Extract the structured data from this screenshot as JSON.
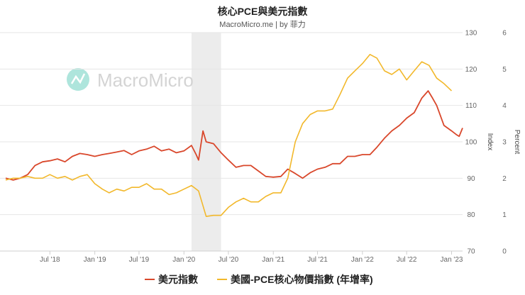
{
  "chart_data": {
    "type": "line",
    "title": "核心PCE與美元指數",
    "subtitle": "MacroMicro.me | by 菲力",
    "watermark": "MacroMicro",
    "x_ticks": [
      "Jul '18",
      "Jan '19",
      "Jul '19",
      "Jan '20",
      "Jul '20",
      "Jan '21",
      "Jul '21",
      "Jan '22",
      "Jul '22",
      "Jan '23"
    ],
    "x_range": [
      "2018-01-01",
      "2023-02-15"
    ],
    "shaded_period": [
      "2020-02-01",
      "2020-06-01"
    ],
    "y_left": {
      "label": "Index",
      "ticks": [
        70,
        80,
        90,
        100,
        110,
        120,
        130
      ],
      "range": [
        70,
        130
      ]
    },
    "y_right": {
      "label": "Percent",
      "ticks": [
        0,
        1,
        2,
        3,
        4,
        5,
        6
      ],
      "range": [
        0,
        6
      ]
    },
    "grid": true,
    "legend_position": "bottom",
    "series": [
      {
        "name": "美元指數",
        "axis": "left",
        "color": "#d9472b",
        "points": [
          [
            "2018-01-01",
            90.0
          ],
          [
            "2018-02-01",
            89.5
          ],
          [
            "2018-03-01",
            90.0
          ],
          [
            "2018-04-01",
            91.0
          ],
          [
            "2018-05-01",
            93.5
          ],
          [
            "2018-06-01",
            94.5
          ],
          [
            "2018-07-01",
            94.8
          ],
          [
            "2018-08-01",
            95.3
          ],
          [
            "2018-09-01",
            94.5
          ],
          [
            "2018-10-01",
            96.0
          ],
          [
            "2018-11-01",
            96.8
          ],
          [
            "2018-12-01",
            96.5
          ],
          [
            "2019-01-01",
            96.0
          ],
          [
            "2019-02-01",
            96.5
          ],
          [
            "2019-03-01",
            96.8
          ],
          [
            "2019-04-01",
            97.2
          ],
          [
            "2019-05-01",
            97.6
          ],
          [
            "2019-06-01",
            96.5
          ],
          [
            "2019-07-01",
            97.5
          ],
          [
            "2019-08-01",
            98.0
          ],
          [
            "2019-09-01",
            98.8
          ],
          [
            "2019-10-01",
            97.5
          ],
          [
            "2019-11-01",
            98.0
          ],
          [
            "2019-12-01",
            97.0
          ],
          [
            "2020-01-01",
            97.5
          ],
          [
            "2020-02-01",
            99.0
          ],
          [
            "2020-02-20",
            96.5
          ],
          [
            "2020-03-01",
            95.0
          ],
          [
            "2020-03-19",
            103.0
          ],
          [
            "2020-04-01",
            100.0
          ],
          [
            "2020-05-01",
            99.5
          ],
          [
            "2020-06-01",
            97.0
          ],
          [
            "2020-07-01",
            95.0
          ],
          [
            "2020-08-01",
            93.0
          ],
          [
            "2020-09-01",
            93.5
          ],
          [
            "2020-10-01",
            93.5
          ],
          [
            "2020-11-01",
            92.0
          ],
          [
            "2020-12-01",
            90.5
          ],
          [
            "2021-01-01",
            90.3
          ],
          [
            "2021-02-01",
            90.5
          ],
          [
            "2021-03-01",
            92.5
          ],
          [
            "2021-04-01",
            91.3
          ],
          [
            "2021-05-01",
            90.0
          ],
          [
            "2021-06-01",
            91.5
          ],
          [
            "2021-07-01",
            92.5
          ],
          [
            "2021-08-01",
            93.0
          ],
          [
            "2021-09-01",
            94.0
          ],
          [
            "2021-10-01",
            94.0
          ],
          [
            "2021-11-01",
            96.0
          ],
          [
            "2021-12-01",
            96.0
          ],
          [
            "2022-01-01",
            96.5
          ],
          [
            "2022-02-01",
            96.5
          ],
          [
            "2022-03-01",
            98.5
          ],
          [
            "2022-04-01",
            101.0
          ],
          [
            "2022-05-01",
            103.0
          ],
          [
            "2022-06-01",
            104.5
          ],
          [
            "2022-07-01",
            106.5
          ],
          [
            "2022-08-01",
            108.0
          ],
          [
            "2022-09-01",
            112.0
          ],
          [
            "2022-09-27",
            114.0
          ],
          [
            "2022-10-15",
            112.0
          ],
          [
            "2022-11-01",
            110.0
          ],
          [
            "2022-12-01",
            104.5
          ],
          [
            "2023-01-01",
            103.0
          ],
          [
            "2023-01-20",
            102.0
          ],
          [
            "2023-02-01",
            101.5
          ],
          [
            "2023-02-15",
            103.8
          ]
        ]
      },
      {
        "name": "美國-PCE核心物價指數 (年增率)",
        "axis": "right",
        "color": "#f2b82b",
        "points": [
          [
            "2018-01-01",
            1.95
          ],
          [
            "2018-02-01",
            2.0
          ],
          [
            "2018-03-01",
            2.0
          ],
          [
            "2018-04-01",
            2.05
          ],
          [
            "2018-05-01",
            2.0
          ],
          [
            "2018-06-01",
            2.0
          ],
          [
            "2018-07-01",
            2.1
          ],
          [
            "2018-08-01",
            2.0
          ],
          [
            "2018-09-01",
            2.05
          ],
          [
            "2018-10-01",
            1.95
          ],
          [
            "2018-11-01",
            2.05
          ],
          [
            "2018-12-01",
            2.1
          ],
          [
            "2019-01-01",
            1.85
          ],
          [
            "2019-02-01",
            1.7
          ],
          [
            "2019-03-01",
            1.6
          ],
          [
            "2019-04-01",
            1.7
          ],
          [
            "2019-05-01",
            1.65
          ],
          [
            "2019-06-01",
            1.75
          ],
          [
            "2019-07-01",
            1.75
          ],
          [
            "2019-08-01",
            1.85
          ],
          [
            "2019-09-01",
            1.7
          ],
          [
            "2019-10-01",
            1.7
          ],
          [
            "2019-11-01",
            1.55
          ],
          [
            "2019-12-01",
            1.6
          ],
          [
            "2020-01-01",
            1.7
          ],
          [
            "2020-02-01",
            1.8
          ],
          [
            "2020-03-01",
            1.65
          ],
          [
            "2020-04-01",
            0.95
          ],
          [
            "2020-05-01",
            0.98
          ],
          [
            "2020-06-01",
            0.98
          ],
          [
            "2020-07-01",
            1.2
          ],
          [
            "2020-08-01",
            1.35
          ],
          [
            "2020-09-01",
            1.45
          ],
          [
            "2020-10-01",
            1.35
          ],
          [
            "2020-11-01",
            1.35
          ],
          [
            "2020-12-01",
            1.5
          ],
          [
            "2021-01-01",
            1.6
          ],
          [
            "2021-02-01",
            1.6
          ],
          [
            "2021-03-01",
            2.0
          ],
          [
            "2021-04-01",
            3.0
          ],
          [
            "2021-05-01",
            3.5
          ],
          [
            "2021-06-01",
            3.75
          ],
          [
            "2021-07-01",
            3.85
          ],
          [
            "2021-08-01",
            3.85
          ],
          [
            "2021-09-01",
            3.9
          ],
          [
            "2021-10-01",
            4.3
          ],
          [
            "2021-11-01",
            4.75
          ],
          [
            "2021-12-01",
            4.95
          ],
          [
            "2022-01-01",
            5.15
          ],
          [
            "2022-02-01",
            5.4
          ],
          [
            "2022-03-01",
            5.3
          ],
          [
            "2022-04-01",
            4.95
          ],
          [
            "2022-05-01",
            4.85
          ],
          [
            "2022-06-01",
            5.0
          ],
          [
            "2022-07-01",
            4.7
          ],
          [
            "2022-08-01",
            4.95
          ],
          [
            "2022-09-01",
            5.2
          ],
          [
            "2022-10-01",
            5.1
          ],
          [
            "2022-11-01",
            4.75
          ],
          [
            "2022-12-01",
            4.6
          ],
          [
            "2023-01-01",
            4.4
          ]
        ]
      }
    ]
  }
}
